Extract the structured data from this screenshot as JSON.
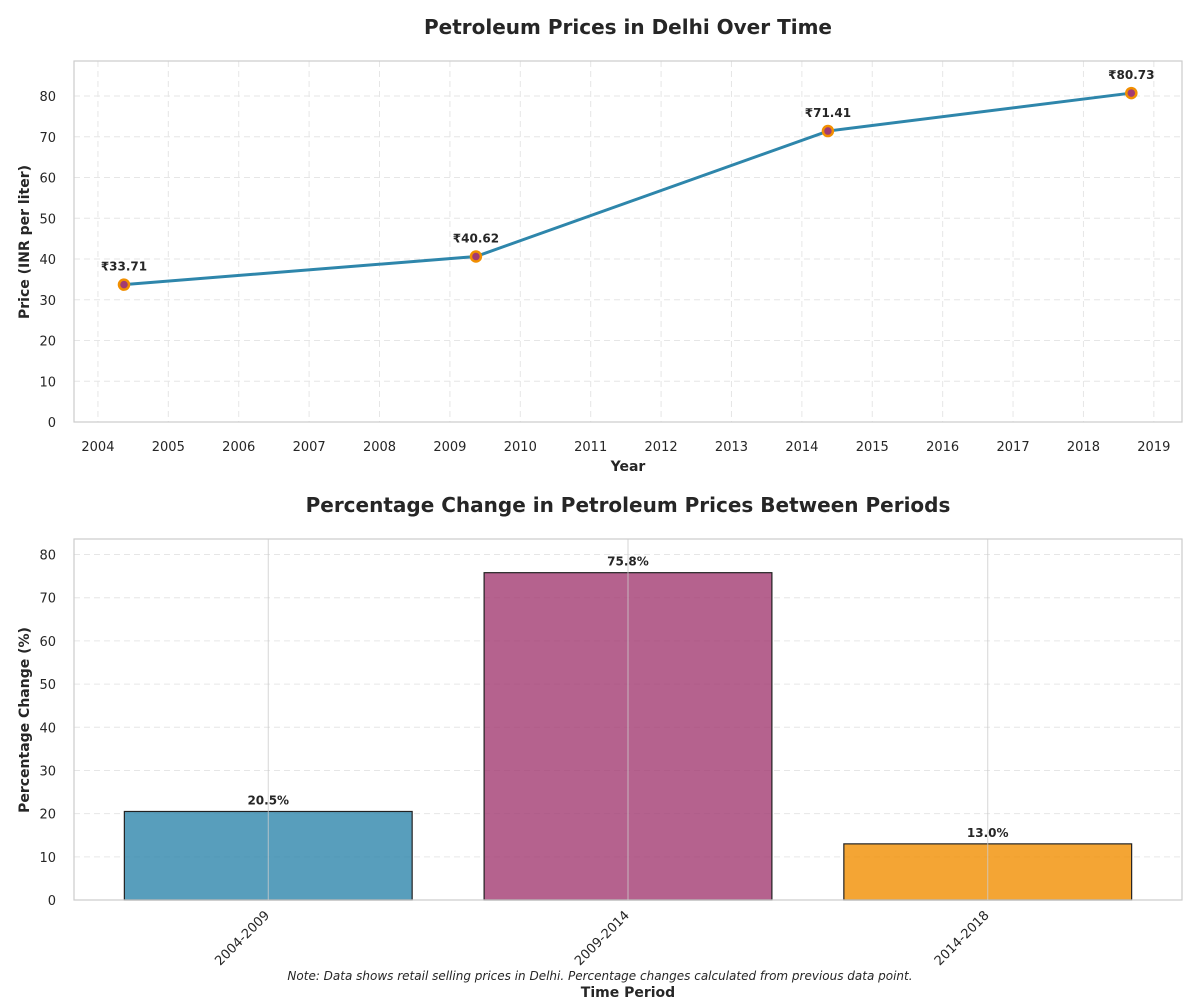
{
  "note": "Note: Data shows retail selling prices in Delhi. Percentage changes calculated from previous data point.",
  "colors": {
    "line": "#2E86AB",
    "marker_edge": "#F18F01",
    "marker_face": "#A23B72",
    "bars": [
      "#2E86AB",
      "#A23B72",
      "#F18F01"
    ]
  },
  "chart_data": [
    {
      "type": "line",
      "title": "Petroleum Prices in Delhi Over Time",
      "xlabel": "Year",
      "ylabel": "Price (INR per liter)",
      "x": [
        2004.37,
        2009.37,
        2014.37,
        2018.68
      ],
      "values": [
        33.71,
        40.62,
        71.41,
        80.73
      ],
      "labels": [
        "₹33.71",
        "₹40.62",
        "₹71.41",
        "₹80.73"
      ],
      "xlim": [
        2003.66,
        2019.4
      ],
      "ylim": [
        0,
        88.6
      ],
      "xticks": [
        2004,
        2005,
        2006,
        2007,
        2008,
        2009,
        2010,
        2011,
        2012,
        2013,
        2014,
        2015,
        2016,
        2017,
        2018,
        2019
      ],
      "yticks": [
        0,
        10,
        20,
        30,
        40,
        50,
        60,
        70,
        80
      ],
      "grid": true
    },
    {
      "type": "bar",
      "title": "Percentage Change in Petroleum Prices Between Periods",
      "xlabel": "Time Period",
      "ylabel": "Percentage Change (%)",
      "categories": [
        "2004-2009",
        "2009-2014",
        "2014-2018"
      ],
      "values": [
        20.5,
        75.8,
        13.0
      ],
      "labels": [
        "20.5%",
        "75.8%",
        "13.0%"
      ],
      "ylim": [
        0,
        83.6
      ],
      "yticks": [
        0,
        10,
        20,
        30,
        40,
        50,
        60,
        70,
        80
      ],
      "grid": true
    }
  ]
}
